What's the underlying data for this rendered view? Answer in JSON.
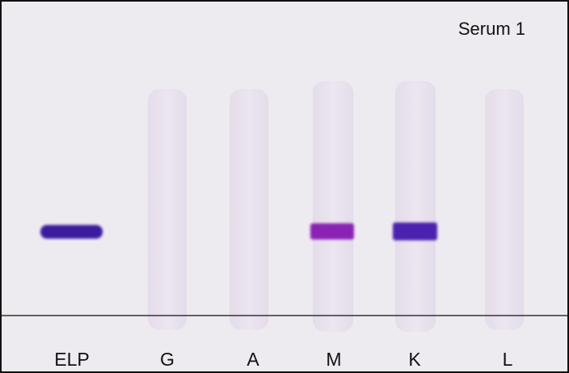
{
  "title": "Serum 1",
  "lanes": [
    "ELP",
    "G",
    "A",
    "M",
    "K",
    "L"
  ]
}
